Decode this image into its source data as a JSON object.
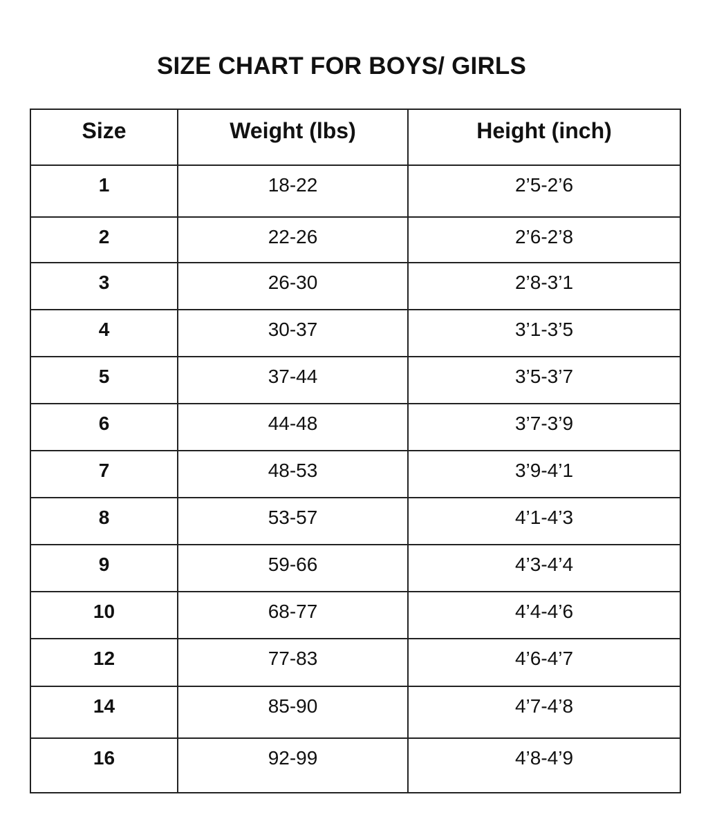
{
  "title": "SIZE CHART FOR BOYS/ GIRLS",
  "table": {
    "headers": [
      "Size",
      "Weight (lbs)",
      "Height (inch)"
    ],
    "rows": [
      [
        "1",
        "18-22",
        "2’5-2’6"
      ],
      [
        "2",
        "22-26",
        "2’6-2’8"
      ],
      [
        "3",
        "26-30",
        "2’8-3’1"
      ],
      [
        "4",
        "30-37",
        "3’1-3’5"
      ],
      [
        "5",
        "37-44",
        "3’5-3’7"
      ],
      [
        "6",
        "44-48",
        "3’7-3’9"
      ],
      [
        "7",
        "48-53",
        "3’9-4’1"
      ],
      [
        "8",
        "53-57",
        "4’1-4’3"
      ],
      [
        "9",
        "59-66",
        "4’3-4’4"
      ],
      [
        "10",
        "68-77",
        "4’4-4’6"
      ],
      [
        "12",
        "77-83",
        "4’6-4’7"
      ],
      [
        "14",
        "85-90",
        "4’7-4’8"
      ],
      [
        "16",
        "92-99",
        "4’8-4’9"
      ]
    ]
  }
}
